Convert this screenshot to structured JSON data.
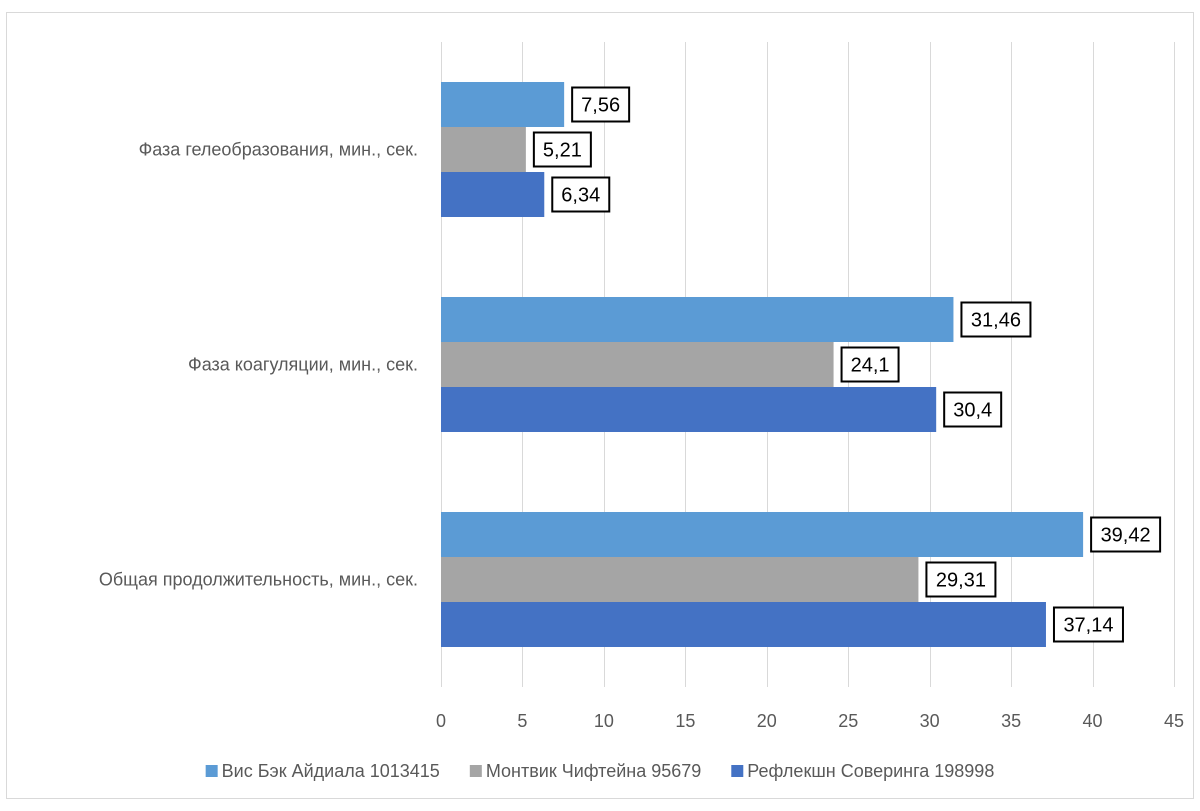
{
  "chart_data": {
    "type": "bar",
    "orientation": "horizontal",
    "categories": [
      "Фаза гелеобразования, мин., сек.",
      "Фаза коагуляции, мин., сек.",
      "Общая продолжительность, мин., сек."
    ],
    "series": [
      {
        "name": "Вис Бэк Айдиала 1013415",
        "values": [
          7.56,
          31.46,
          39.42
        ],
        "labels": [
          "7,56",
          "31,46",
          "39,42"
        ],
        "color": "#5B9BD5"
      },
      {
        "name": "Монтвик Чифтейна 95679",
        "values": [
          5.21,
          24.1,
          29.31
        ],
        "labels": [
          "5,21",
          "24,1",
          "29,31"
        ],
        "color": "#A5A5A5"
      },
      {
        "name": "Рефлекшн Соверинга 198998",
        "values": [
          6.34,
          30.4,
          37.14
        ],
        "labels": [
          "6,34",
          "30,4",
          "37,14"
        ],
        "color": "#4472C4"
      }
    ],
    "xlim": [
      0,
      45
    ],
    "xticks": [
      0,
      5,
      10,
      15,
      20,
      25,
      30,
      35,
      40,
      45
    ],
    "grid": true,
    "legend_position": "bottom"
  }
}
